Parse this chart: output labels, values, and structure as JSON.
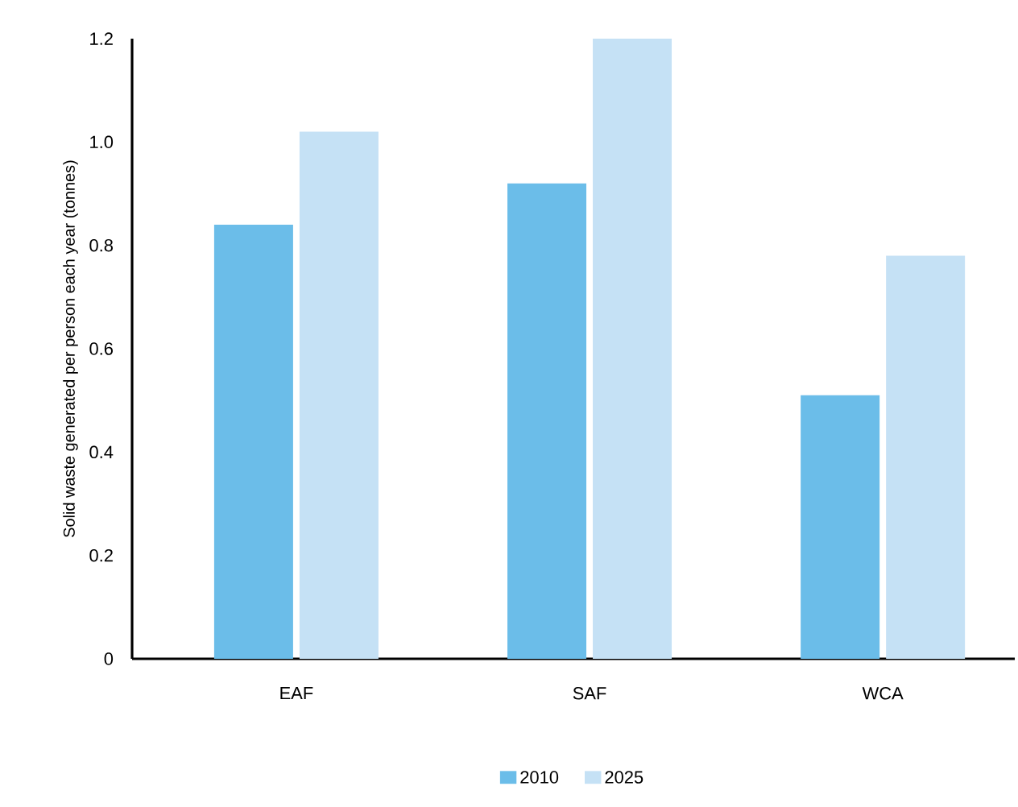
{
  "chart_data": {
    "type": "bar",
    "ylabel": "Solid waste generated per person each year (tonnes)",
    "categories": [
      "EAF",
      "SAF",
      "WCA"
    ],
    "series": [
      {
        "name": "2010",
        "color": "#6bbde9",
        "values": [
          0.84,
          0.92,
          0.51
        ]
      },
      {
        "name": "2025",
        "color": "#c5e1f5",
        "values": [
          1.02,
          1.2,
          0.78
        ]
      }
    ],
    "ylim": [
      0,
      1.2
    ],
    "yticks": [
      0,
      0.2,
      0.4,
      0.6,
      0.8,
      {
        "value": 1,
        "label": "1.0"
      },
      1.2
    ],
    "legend": "bottom",
    "grid": false
  }
}
